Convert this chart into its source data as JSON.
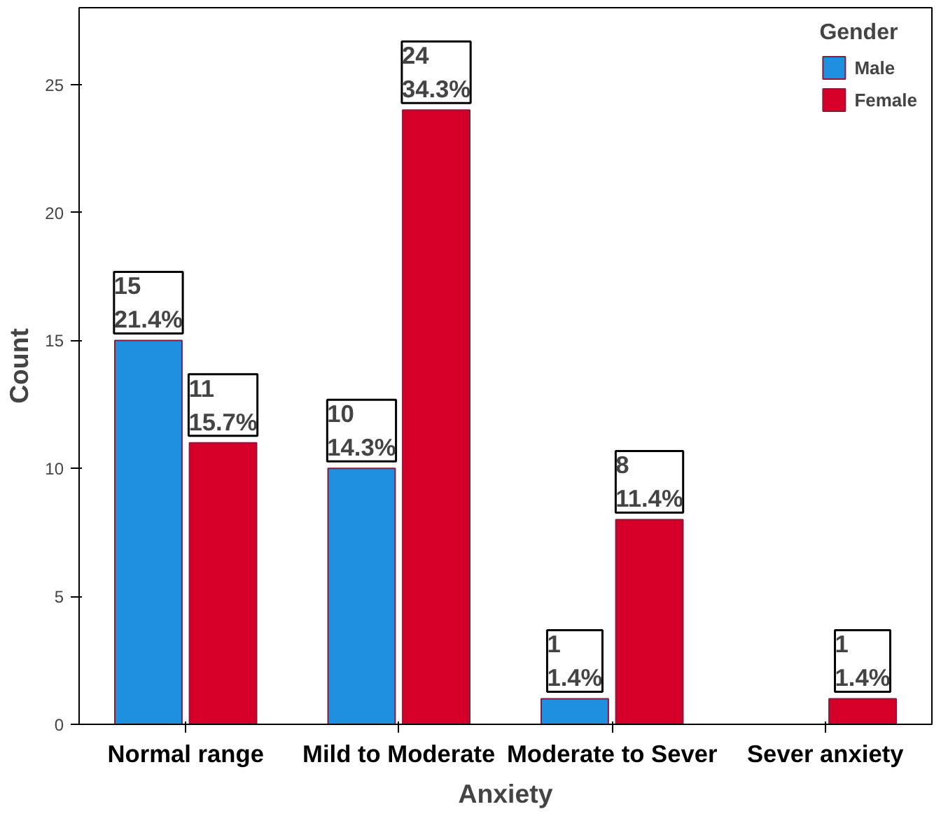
{
  "chart_data": {
    "type": "bar",
    "xlabel": "Anxiety",
    "ylabel": "Count",
    "legend_title": "Gender",
    "categories": [
      "Normal range",
      "Mild to Moderate",
      "Moderate to Sever",
      "Sever anxiety"
    ],
    "series": [
      {
        "name": "Male",
        "color": "#1f8fe0",
        "values": [
          15,
          10,
          1,
          null
        ],
        "value_labels": [
          "15\n21.4%",
          "10\n14.3%",
          "1\n1.4%",
          null
        ]
      },
      {
        "name": "Female",
        "color": "#d4002a",
        "values": [
          11,
          24,
          8,
          1
        ],
        "value_labels": [
          "11\n15.7%",
          "24\n34.3%",
          "8\n11.4%",
          "1\n1.4%"
        ]
      }
    ],
    "ylim": [
      0,
      28
    ],
    "yticks": [
      0,
      5,
      10,
      15,
      20,
      25
    ],
    "grid": false,
    "legend": "top right"
  }
}
